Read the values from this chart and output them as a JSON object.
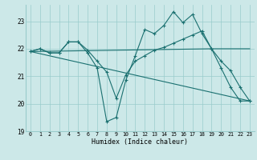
{
  "xlabel": "Humidex (Indice chaleur)",
  "bg_color": "#cce8e8",
  "grid_color": "#99cccc",
  "line_color": "#1a7070",
  "xlim": [
    -0.5,
    23.5
  ],
  "ylim": [
    19.0,
    23.6
  ],
  "yticks": [
    19,
    20,
    21,
    22,
    23
  ],
  "xticks": [
    0,
    1,
    2,
    3,
    4,
    5,
    6,
    7,
    8,
    9,
    10,
    11,
    12,
    13,
    14,
    15,
    16,
    17,
    18,
    19,
    20,
    21,
    22,
    23
  ],
  "line1": {
    "x": [
      0,
      1,
      2,
      3,
      4,
      5,
      6,
      7,
      8,
      9,
      10,
      11,
      12,
      13,
      14,
      15,
      16,
      17,
      18,
      19,
      20,
      21,
      22,
      23
    ],
    "y": [
      21.9,
      22.0,
      21.85,
      21.85,
      22.25,
      22.25,
      21.85,
      21.3,
      19.35,
      19.5,
      20.85,
      21.75,
      22.7,
      22.55,
      22.85,
      23.35,
      22.95,
      23.25,
      22.55,
      22.0,
      21.3,
      20.6,
      20.1,
      20.1
    ]
  },
  "line2": {
    "x": [
      0,
      1,
      2,
      3,
      4,
      5,
      6,
      7,
      8,
      9,
      10,
      11,
      12,
      13,
      14,
      15,
      16,
      17,
      18,
      19,
      20,
      21,
      22,
      23
    ],
    "y": [
      21.9,
      22.0,
      21.85,
      21.85,
      22.25,
      22.25,
      21.95,
      21.55,
      21.15,
      20.2,
      21.05,
      21.55,
      21.75,
      21.95,
      22.05,
      22.2,
      22.35,
      22.5,
      22.65,
      22.0,
      21.55,
      21.2,
      20.6,
      20.1
    ]
  },
  "line3_x": [
    0,
    19,
    23
  ],
  "line3_y": [
    21.9,
    22.0,
    22.0
  ],
  "line4_x": [
    0,
    23
  ],
  "line4_y": [
    21.9,
    20.1
  ]
}
